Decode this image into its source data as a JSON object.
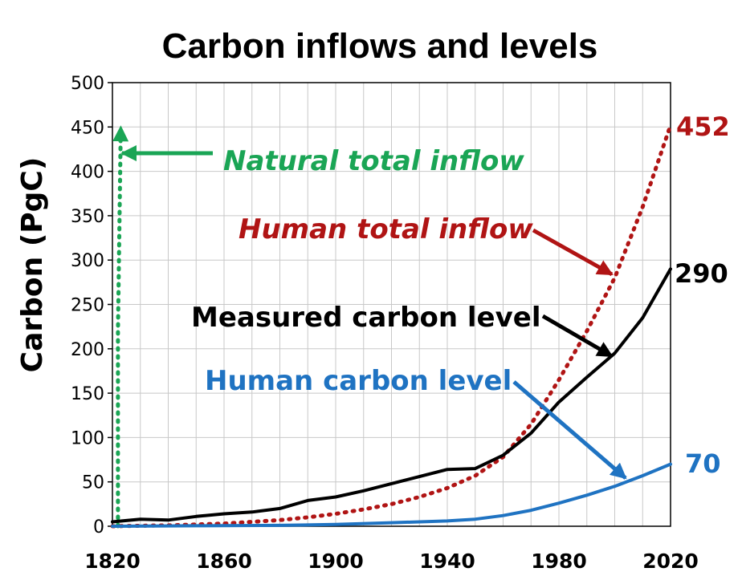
{
  "chart_data": {
    "type": "line",
    "title": "Carbon inflows and levels",
    "xlabel": "",
    "ylabel": "Carbon  (PgC)",
    "xlim": [
      1820,
      2020
    ],
    "ylim": [
      0,
      500
    ],
    "x_ticks": [
      1820,
      1860,
      1900,
      1940,
      1980,
      2020
    ],
    "y_ticks": [
      0,
      50,
      100,
      150,
      200,
      250,
      300,
      350,
      400,
      450,
      500
    ],
    "grid": true,
    "series": [
      {
        "name": "Natural total inflow",
        "label": "Natural total inflow",
        "color": "#1aa555",
        "style": "dotted",
        "x": [
          1822,
          1822,
          1823
        ],
        "y": [
          0,
          220,
          450
        ]
      },
      {
        "name": "Human total inflow",
        "label": "Human total inflow",
        "color": "#b01414",
        "style": "dotted",
        "end_label": "452",
        "x": [
          1820,
          1830,
          1840,
          1850,
          1860,
          1870,
          1880,
          1890,
          1900,
          1910,
          1920,
          1930,
          1940,
          1950,
          1960,
          1970,
          1980,
          1990,
          2000,
          2010,
          2020
        ],
        "y": [
          0,
          0.5,
          1,
          2,
          3,
          5,
          7,
          10,
          14,
          19,
          25,
          33,
          43,
          57,
          78,
          115,
          165,
          220,
          280,
          360,
          452
        ]
      },
      {
        "name": "Measured carbon level",
        "label": "Measured carbon level",
        "color": "#000000",
        "style": "solid",
        "end_label": "290",
        "x": [
          1820,
          1830,
          1840,
          1850,
          1860,
          1870,
          1880,
          1890,
          1900,
          1910,
          1920,
          1930,
          1940,
          1950,
          1960,
          1970,
          1980,
          1990,
          2000,
          2010,
          2020
        ],
        "y": [
          5,
          8,
          7,
          11,
          14,
          16,
          20,
          29,
          33,
          40,
          48,
          56,
          64,
          65,
          80,
          105,
          140,
          168,
          195,
          235,
          290
        ]
      },
      {
        "name": "Human carbon level",
        "label": "Human carbon level",
        "color": "#1f73c2",
        "style": "solid",
        "end_label": "70",
        "x": [
          1820,
          1850,
          1880,
          1900,
          1920,
          1940,
          1950,
          1960,
          1970,
          1980,
          1990,
          2000,
          2010,
          2020
        ],
        "y": [
          0,
          0.5,
          1,
          2,
          4,
          6,
          8,
          12,
          18,
          26,
          35,
          45,
          57,
          70
        ]
      }
    ]
  }
}
